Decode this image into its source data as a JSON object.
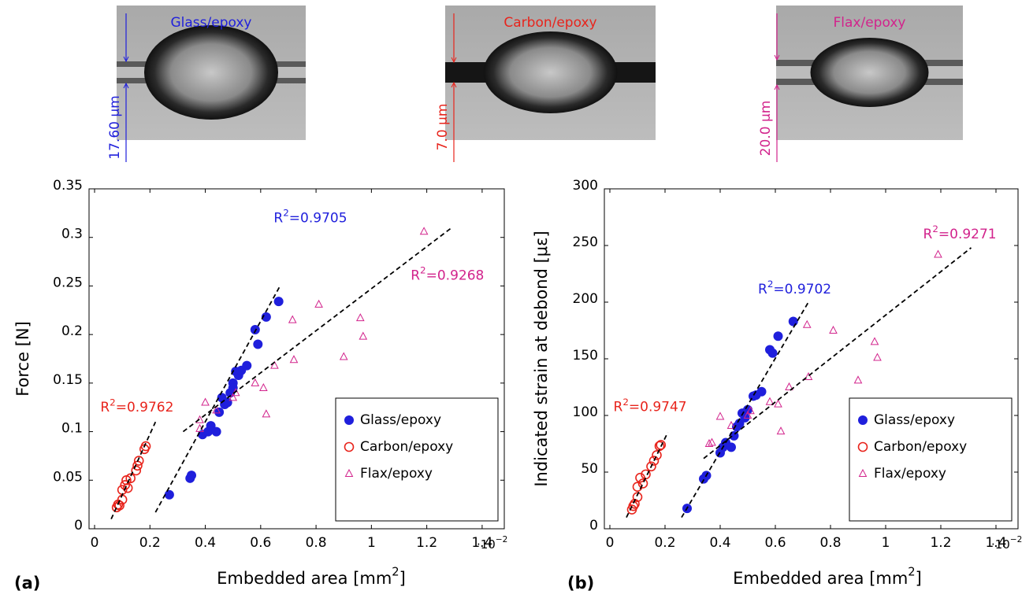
{
  "images": [
    {
      "label": "Glass/epoxy",
      "scale": "17.60 µm",
      "color": "#1f1fdc"
    },
    {
      "label": "Carbon/epoxy",
      "scale": "7.0 µm",
      "color": "#e8241c"
    },
    {
      "label": "Flax/epoxy",
      "scale": "20.0 µm",
      "color": "#d2238c"
    }
  ],
  "chart_data": [
    {
      "type": "scatter",
      "panel": "(a)",
      "xlabel": {
        "text": "Embedded area [mm",
        "sup": "2",
        "after": "]"
      },
      "ylabel": "Force [N]",
      "x_multiplier": {
        "text": "·10",
        "sup": "−2"
      },
      "xlim": [
        -0.02,
        1.48
      ],
      "ylim": [
        0,
        0.35
      ],
      "xticks": [
        0,
        0.2,
        0.4,
        0.6,
        0.8,
        1,
        1.2,
        1.4
      ],
      "yticks": [
        0,
        0.05,
        0.1,
        0.15,
        0.2,
        0.25,
        0.3,
        0.35
      ],
      "legend": "lower right",
      "series": [
        {
          "name": "Glass/epoxy",
          "color": "#1f1fdc",
          "marker": "filled-circle",
          "x": [
            0.27,
            0.345,
            0.35,
            0.39,
            0.41,
            0.42,
            0.44,
            0.45,
            0.46,
            0.47,
            0.48,
            0.49,
            0.5,
            0.5,
            0.51,
            0.52,
            0.53,
            0.55,
            0.58,
            0.59,
            0.62,
            0.665
          ],
          "values": [
            0.035,
            0.052,
            0.055,
            0.097,
            0.1,
            0.106,
            0.1,
            0.12,
            0.135,
            0.128,
            0.13,
            0.14,
            0.15,
            0.145,
            0.162,
            0.158,
            0.163,
            0.168,
            0.205,
            0.19,
            0.218,
            0.234
          ]
        },
        {
          "name": "Carbon/epoxy",
          "color": "#e8241c",
          "marker": "open-circle",
          "x": [
            0.08,
            0.085,
            0.09,
            0.1,
            0.1,
            0.11,
            0.115,
            0.12,
            0.13,
            0.15,
            0.155,
            0.16,
            0.18,
            0.185
          ],
          "values": [
            0.022,
            0.025,
            0.024,
            0.03,
            0.04,
            0.045,
            0.05,
            0.042,
            0.052,
            0.06,
            0.065,
            0.07,
            0.082,
            0.085
          ]
        },
        {
          "name": "Flax/epoxy",
          "color": "#d2238c",
          "marker": "open-triangle",
          "x": [
            0.38,
            0.38,
            0.4,
            0.44,
            0.5,
            0.51,
            0.58,
            0.61,
            0.62,
            0.65,
            0.715,
            0.72,
            0.81,
            0.9,
            0.96,
            0.97,
            1.19
          ],
          "values": [
            0.103,
            0.112,
            0.13,
            0.122,
            0.135,
            0.14,
            0.15,
            0.145,
            0.118,
            0.168,
            0.215,
            0.174,
            0.231,
            0.177,
            0.217,
            0.198,
            0.306
          ]
        }
      ],
      "fits": [
        {
          "color": "#1f1fdc",
          "x": [
            0.22,
            0.67
          ],
          "y": [
            0.017,
            0.25
          ],
          "label": {
            "text": "R",
            "sup": "2",
            "after": "=0.9705"
          }
        },
        {
          "color": "#e8241c",
          "x": [
            0.06,
            0.22
          ],
          "y": [
            0.01,
            0.11
          ],
          "label": {
            "text": "R",
            "sup": "2",
            "after": "=0.9762"
          }
        },
        {
          "color": "#d2238c",
          "x": [
            0.32,
            1.29
          ],
          "y": [
            0.1,
            0.31
          ],
          "label": {
            "text": "R",
            "sup": "2",
            "after": "=0.9268"
          }
        }
      ]
    },
    {
      "type": "scatter",
      "panel": "(b)",
      "xlabel": {
        "text": "Embedded area [mm",
        "sup": "2",
        "after": "]"
      },
      "ylabel": "Indicated strain at debond [μɛ]",
      "x_multiplier": {
        "text": "·10",
        "sup": "−2"
      },
      "xlim": [
        -0.02,
        1.48
      ],
      "ylim": [
        0,
        300
      ],
      "xticks": [
        0,
        0.2,
        0.4,
        0.6,
        0.8,
        1,
        1.2,
        1.4
      ],
      "yticks": [
        0,
        50,
        100,
        150,
        200,
        250,
        300
      ],
      "legend": "lower right",
      "series": [
        {
          "name": "Glass/epoxy",
          "color": "#1f1fdc",
          "marker": "filled-circle",
          "x": [
            0.28,
            0.34,
            0.35,
            0.4,
            0.41,
            0.42,
            0.44,
            0.45,
            0.46,
            0.47,
            0.48,
            0.49,
            0.5,
            0.52,
            0.53,
            0.55,
            0.58,
            0.59,
            0.61,
            0.665
          ],
          "values": [
            18,
            44,
            47,
            67,
            72,
            76,
            72,
            82,
            90,
            93,
            102,
            98,
            105,
            117,
            118,
            121,
            158,
            155,
            170,
            183
          ]
        },
        {
          "name": "Carbon/epoxy",
          "color": "#e8241c",
          "marker": "open-circle",
          "x": [
            0.08,
            0.085,
            0.09,
            0.1,
            0.1,
            0.11,
            0.12,
            0.13,
            0.15,
            0.16,
            0.17,
            0.18,
            0.185
          ],
          "values": [
            17,
            20,
            22,
            28,
            37,
            45,
            40,
            48,
            55,
            60,
            65,
            73,
            74
          ]
        },
        {
          "name": "Flax/epoxy",
          "color": "#d2238c",
          "marker": "open-triangle",
          "x": [
            0.36,
            0.37,
            0.4,
            0.44,
            0.5,
            0.51,
            0.58,
            0.61,
            0.62,
            0.65,
            0.715,
            0.72,
            0.81,
            0.9,
            0.96,
            0.97,
            1.19
          ],
          "values": [
            75,
            76,
            99,
            91,
            100,
            104,
            112,
            110,
            86,
            125,
            180,
            134,
            175,
            131,
            165,
            151,
            242
          ]
        }
      ],
      "fits": [
        {
          "color": "#1f1fdc",
          "x": [
            0.26,
            0.72
          ],
          "y": [
            10,
            200
          ],
          "label": {
            "text": "R",
            "sup": "2",
            "after": "=0.9702"
          }
        },
        {
          "color": "#e8241c",
          "x": [
            0.06,
            0.21
          ],
          "y": [
            10,
            85
          ],
          "label": {
            "text": "R",
            "sup": "2",
            "after": "=0.9747"
          }
        },
        {
          "color": "#d2238c",
          "x": [
            0.34,
            1.31
          ],
          "y": [
            62,
            248
          ],
          "label": {
            "text": "R",
            "sup": "2",
            "after": "=0.9271"
          }
        }
      ]
    }
  ]
}
